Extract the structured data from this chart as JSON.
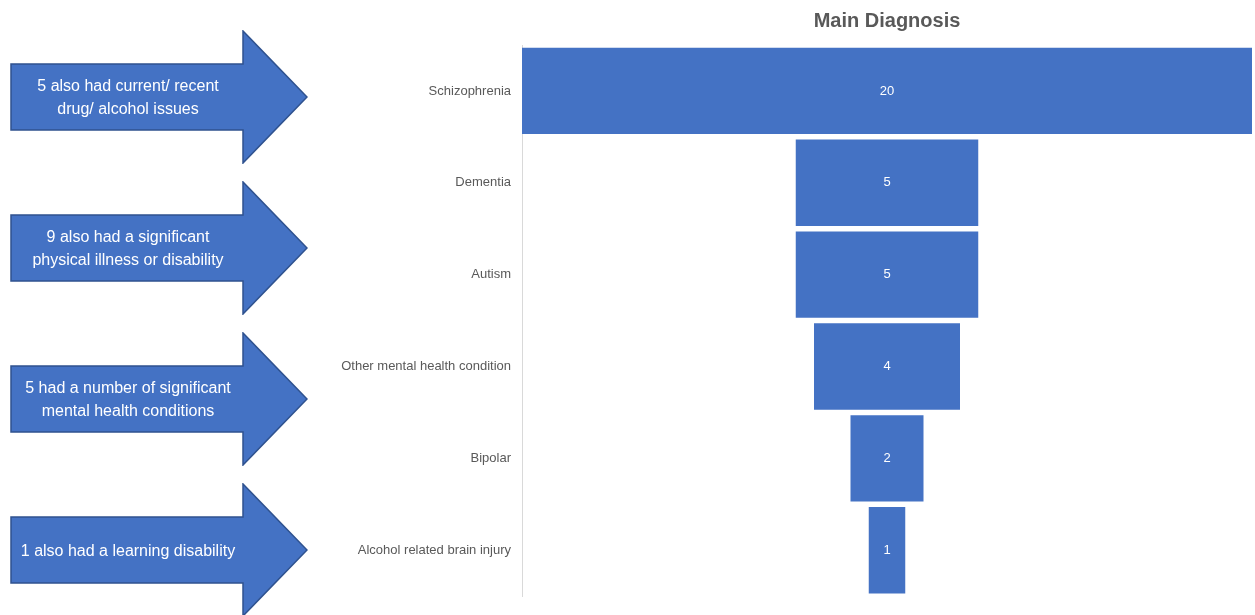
{
  "chart_data": {
    "type": "other",
    "title": "Main Diagnosis",
    "categories": [
      "Schizophrenia",
      "Dementia",
      "Autism",
      "Other mental health condition",
      "Bipolar",
      "Alcohol related brain injury"
    ],
    "values": [
      20,
      5,
      5,
      4,
      2,
      1
    ],
    "color": "#4472c4",
    "data_labels": true,
    "annotations": [
      "5 also had current/ recent drug/ alcohol issues",
      "9 also had a significant physical illness or disability",
      "5 had a number of significant mental health conditions",
      "1 also had a learning disability"
    ]
  }
}
